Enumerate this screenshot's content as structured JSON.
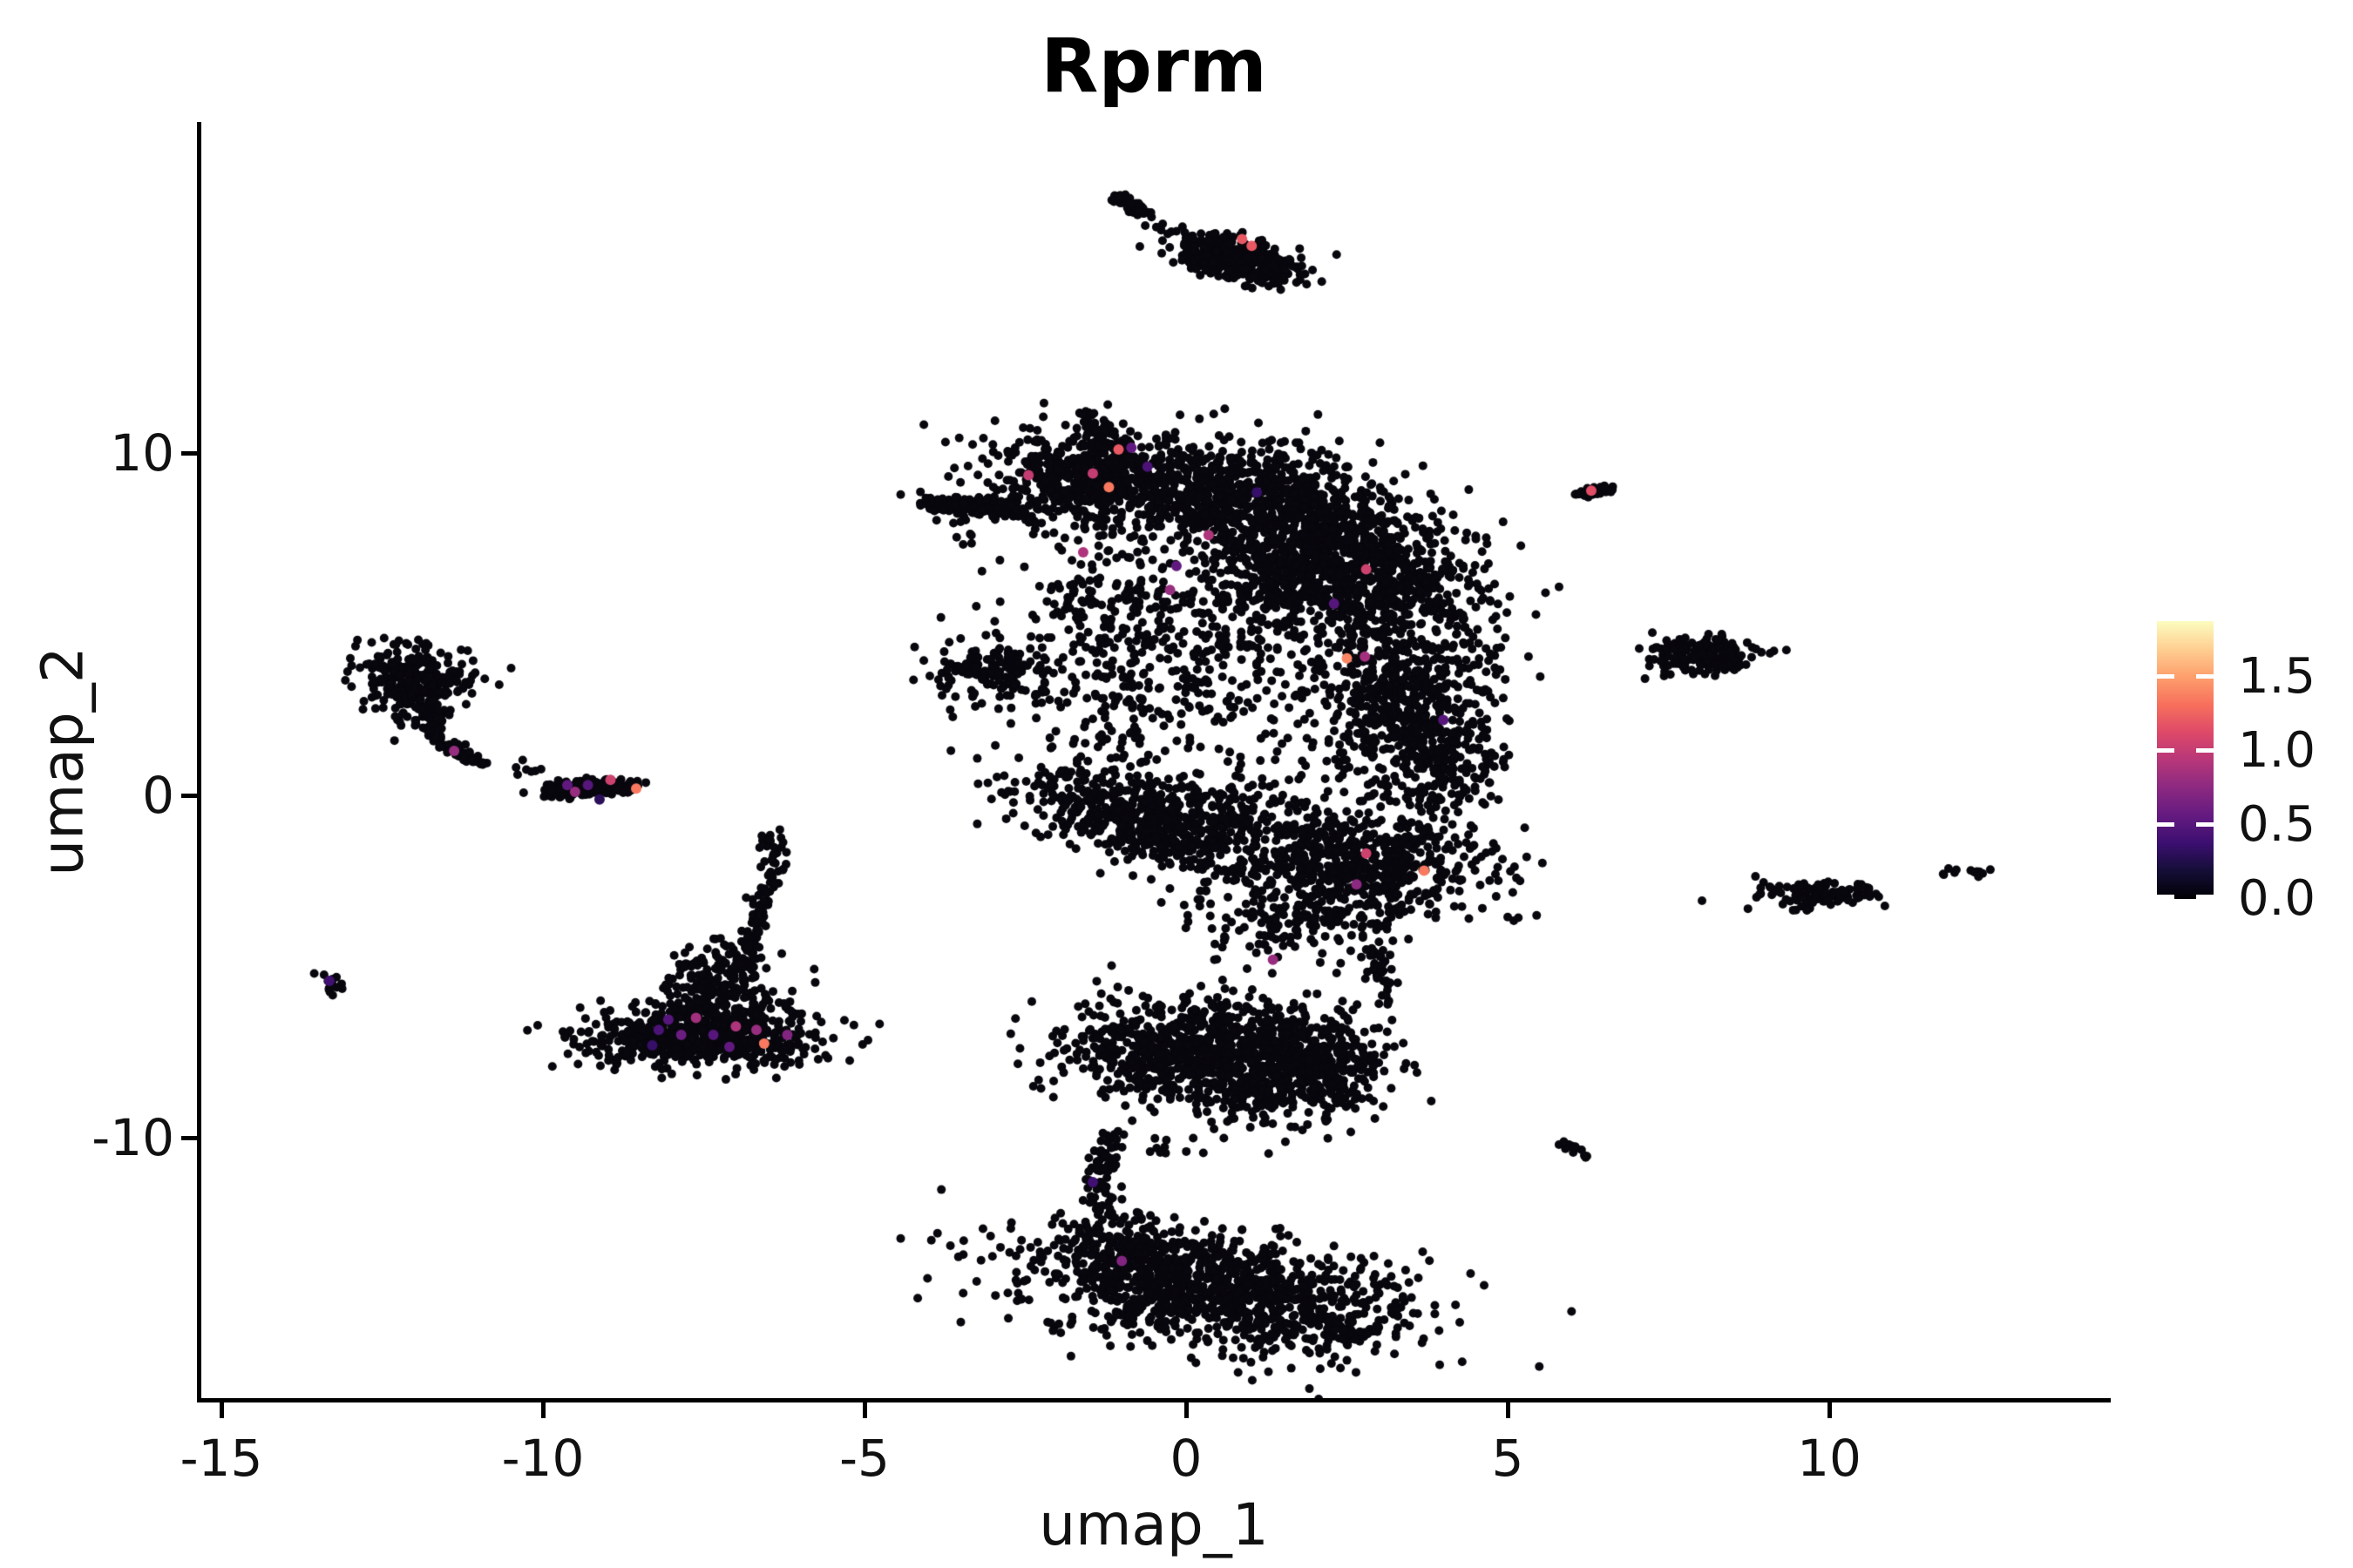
{
  "figure": {
    "title": "Rprm"
  },
  "axes": {
    "x": {
      "label": "umap_1",
      "tick_labels": [
        "-15",
        "-10",
        "-5",
        "0",
        "5",
        "10"
      ],
      "tick_values": [
        -15,
        -10,
        -5,
        0,
        5,
        10
      ]
    },
    "y": {
      "label": "umap_2",
      "tick_labels": [
        "10",
        "0",
        "-10"
      ],
      "tick_values": [
        10,
        0,
        -10
      ]
    }
  },
  "legend": {
    "tick_labels": [
      "1.5",
      "1.0",
      "0.5",
      "0.0"
    ],
    "tick_values": [
      1.5,
      1.0,
      0.5,
      0.0
    ],
    "vmin": 0.0,
    "vmax": 1.875,
    "colormap": "magma",
    "stops": [
      [
        0.0,
        "#000004"
      ],
      [
        0.1,
        "#140e36"
      ],
      [
        0.2,
        "#3b0f70"
      ],
      [
        0.3,
        "#641a80"
      ],
      [
        0.4,
        "#8c2981"
      ],
      [
        0.5,
        "#b73779"
      ],
      [
        0.6,
        "#de4968"
      ],
      [
        0.7,
        "#f7705c"
      ],
      [
        0.8,
        "#fe9f6d"
      ],
      [
        0.9,
        "#fecf92"
      ],
      [
        1.0,
        "#fcfdbf"
      ]
    ]
  },
  "chart_data": {
    "type": "scatter",
    "title": "Rprm",
    "xlabel": "umap_1",
    "ylabel": "umap_2",
    "xlim": [
      -15.35,
      14.35
    ],
    "ylim": [
      -17.7,
      19.7
    ],
    "grid": false,
    "legend_position": "right",
    "point_color_default": "#08070d",
    "color_scale": {
      "vmin": 0.0,
      "vmax": 1.875,
      "colormap": "magma"
    },
    "clusters": [
      {
        "name": "top-streak",
        "type": "line",
        "x1": -1.08,
        "y1": 17.5,
        "x2": -0.6,
        "y2": 16.95,
        "jitter": 0.07,
        "n": 55
      },
      {
        "name": "top-trail",
        "type": "gauss",
        "cx": -0.15,
        "cy": 16.55,
        "sx": 0.3,
        "sy": 0.18,
        "n": 9
      },
      {
        "name": "top-main",
        "type": "line",
        "x1": 0.05,
        "y1": 16.05,
        "x2": 1.5,
        "y2": 15.15,
        "jitter": 0.3,
        "n": 300
      },
      {
        "name": "top-main-core",
        "type": "gauss",
        "cx": 0.6,
        "cy": 15.8,
        "sx": 0.35,
        "sy": 0.3,
        "n": 90
      },
      {
        "name": "hook-blob",
        "type": "gauss",
        "cx": -12.05,
        "cy": 3.5,
        "sx": 0.45,
        "sy": 0.45,
        "n": 240
      },
      {
        "name": "hook-blob2",
        "type": "gauss",
        "cx": -11.9,
        "cy": 2.7,
        "sx": 0.3,
        "sy": 0.4,
        "n": 80
      },
      {
        "name": "hook-tail",
        "type": "line",
        "x1": -11.75,
        "y1": 2.2,
        "x2": -10.9,
        "y2": 0.95,
        "mx": -11.55,
        "my": 1.2,
        "jitter": 0.09,
        "n": 75
      },
      {
        "name": "hook-trail-dots",
        "type": "gauss",
        "cx": -10.3,
        "cy": 0.75,
        "sx": 0.25,
        "sy": 0.12,
        "n": 7
      },
      {
        "name": "left-streak",
        "type": "line",
        "x1": -9.95,
        "y1": 0.1,
        "x2": -8.65,
        "y2": 0.25,
        "jitter": 0.14,
        "n": 220
      },
      {
        "name": "tiny-left",
        "type": "gauss",
        "cx": -13.28,
        "cy": -5.5,
        "sx": 0.18,
        "sy": 0.14,
        "n": 16
      },
      {
        "name": "tri-base",
        "type": "gauss",
        "cx": -7.5,
        "cy": -7.1,
        "sx": 0.92,
        "sy": 0.42,
        "n": 550
      },
      {
        "name": "tri-mid",
        "type": "gauss",
        "cx": -7.35,
        "cy": -6.1,
        "sx": 0.55,
        "sy": 0.5,
        "n": 180
      },
      {
        "name": "tri-apex",
        "type": "gauss",
        "cx": -7.15,
        "cy": -5.0,
        "sx": 0.32,
        "sy": 0.42,
        "n": 90
      },
      {
        "name": "tri-stem",
        "type": "line",
        "x1": -6.9,
        "y1": -4.55,
        "x2": -6.35,
        "y2": -1.6,
        "mx": -6.5,
        "my": -3.2,
        "jitter": 0.1,
        "n": 85
      },
      {
        "name": "tri-stem-top",
        "type": "gauss",
        "cx": -6.45,
        "cy": -1.35,
        "sx": 0.12,
        "sy": 0.2,
        "n": 12
      },
      {
        "name": "arm-left",
        "type": "line",
        "x1": -4.1,
        "y1": 8.55,
        "x2": -2.55,
        "y2": 8.3,
        "jitter": 0.16,
        "n": 180
      },
      {
        "name": "arm-left-trail",
        "type": "gauss",
        "cx": -3.55,
        "cy": 7.75,
        "sx": 0.3,
        "sy": 0.2,
        "n": 7
      },
      {
        "name": "top-nub",
        "type": "line",
        "x1": -1.62,
        "y1": 11.25,
        "x2": -1.3,
        "y2": 10.45,
        "jitter": 0.07,
        "n": 24
      },
      {
        "name": "band-left",
        "type": "gauss",
        "cx": -1.5,
        "cy": 9.3,
        "sx": 0.85,
        "sy": 0.7,
        "n": 600
      },
      {
        "name": "band-right",
        "type": "gauss",
        "cx": 0.7,
        "cy": 8.8,
        "sx": 1.05,
        "sy": 0.8,
        "n": 640
      },
      {
        "name": "block-ur1",
        "type": "gauss",
        "cx": 2.2,
        "cy": 7.7,
        "sx": 0.9,
        "sy": 0.65,
        "n": 450
      },
      {
        "name": "block-ur2",
        "type": "gauss",
        "cx": 3.0,
        "cy": 6.2,
        "sx": 0.8,
        "sy": 0.8,
        "n": 450
      },
      {
        "name": "block-ur3",
        "type": "gauss",
        "cx": 1.6,
        "cy": 6.3,
        "sx": 0.6,
        "sy": 0.6,
        "n": 220
      },
      {
        "name": "mid-left-sparse",
        "type": "gauss",
        "cx": -0.9,
        "cy": 5.5,
        "sx": 0.9,
        "sy": 1.0,
        "n": 180
      },
      {
        "name": "mid-center-sparse",
        "type": "gauss",
        "cx": 0.4,
        "cy": 4.2,
        "sx": 1.1,
        "sy": 1.3,
        "n": 270
      },
      {
        "name": "right-bulge",
        "type": "gauss",
        "cx": 3.3,
        "cy": 2.9,
        "sx": 0.75,
        "sy": 1.25,
        "n": 600
      },
      {
        "name": "right-edge",
        "type": "gauss",
        "cx": 4.0,
        "cy": 1.0,
        "sx": 0.45,
        "sy": 0.9,
        "n": 190
      },
      {
        "name": "detached-blob",
        "type": "gauss",
        "cx": -3.0,
        "cy": 3.6,
        "sx": 0.5,
        "sy": 0.42,
        "n": 140
      },
      {
        "name": "detached-tail",
        "type": "line",
        "x1": -2.6,
        "y1": 3.2,
        "x2": -2.15,
        "y2": 2.75,
        "jitter": 0.1,
        "n": 9
      },
      {
        "name": "mid-gap-sparse",
        "type": "gauss",
        "cx": -1.1,
        "cy": 2.3,
        "sx": 0.7,
        "sy": 0.9,
        "n": 95
      },
      {
        "name": "wedge",
        "type": "gauss",
        "cx": -0.7,
        "cy": -0.7,
        "sx": 1.1,
        "sy": 0.55,
        "rot": -32,
        "n": 550
      },
      {
        "name": "center-bottom",
        "type": "gauss",
        "cx": 0.7,
        "cy": -0.5,
        "sx": 0.9,
        "sy": 0.9,
        "n": 170
      },
      {
        "name": "lower-right",
        "type": "gauss",
        "cx": 2.7,
        "cy": -2.0,
        "sx": 0.95,
        "sy": 0.8,
        "n": 600
      },
      {
        "name": "bottom-taper",
        "type": "gauss",
        "cx": 1.6,
        "cy": -3.7,
        "sx": 0.75,
        "sy": 0.5,
        "n": 150
      },
      {
        "name": "bottom-tail",
        "type": "line",
        "x1": 2.9,
        "y1": -4.4,
        "x2": 3.15,
        "y2": -6.1,
        "jitter": 0.1,
        "n": 42
      },
      {
        "name": "lobe-up-left",
        "type": "gauss",
        "cx": -0.35,
        "cy": -7.4,
        "sx": 0.8,
        "sy": 0.75,
        "n": 500
      },
      {
        "name": "lobe-up-right",
        "type": "gauss",
        "cx": 1.25,
        "cy": -7.8,
        "sx": 0.85,
        "sy": 0.85,
        "n": 650
      },
      {
        "name": "lobe-up-edge",
        "type": "gauss",
        "cx": 2.25,
        "cy": -8.1,
        "sx": 0.4,
        "sy": 0.55,
        "n": 150
      },
      {
        "name": "lobe-up-nub",
        "type": "line",
        "x1": 0.45,
        "y1": -6.0,
        "x2": 0.6,
        "y2": -6.6,
        "jitter": 0.08,
        "n": 12
      },
      {
        "name": "bridge",
        "type": "line",
        "x1": -1.05,
        "y1": -9.85,
        "x2": -1.25,
        "y2": -12.4,
        "mx": -1.55,
        "my": -11.1,
        "jitter": 0.12,
        "n": 80
      },
      {
        "name": "bridge-side",
        "type": "gauss",
        "cx": -0.55,
        "cy": -10.3,
        "sx": 0.3,
        "sy": 0.2,
        "n": 7
      },
      {
        "name": "lobe-low",
        "type": "gauss",
        "cx": 0.55,
        "cy": -14.5,
        "sx": 1.55,
        "sy": 0.8,
        "rot": -16,
        "n": 1100
      },
      {
        "name": "lobe-low-left",
        "type": "gauss",
        "cx": -0.9,
        "cy": -13.3,
        "sx": 0.5,
        "sy": 0.55,
        "n": 180
      },
      {
        "name": "lobe-low-tip",
        "type": "line",
        "x1": 2.1,
        "y1": -15.3,
        "x2": 2.75,
        "y2": -15.95,
        "jitter": 0.12,
        "n": 48
      },
      {
        "name": "r-top",
        "type": "line",
        "x1": 6.1,
        "y1": 8.8,
        "x2": 6.6,
        "y2": 8.95,
        "jitter": 0.08,
        "n": 40
      },
      {
        "name": "r-mid",
        "type": "gauss",
        "cx": 8.0,
        "cy": 4.1,
        "sx": 0.42,
        "sy": 0.26,
        "n": 180
      },
      {
        "name": "r-mid-outliers",
        "type": "gauss",
        "cx": 7.3,
        "cy": 4.2,
        "sx": 0.15,
        "sy": 0.08,
        "n": 4
      },
      {
        "name": "r-bottom",
        "type": "gauss",
        "cx": 9.85,
        "cy": -2.85,
        "sx": 0.48,
        "sy": 0.2,
        "n": 120
      },
      {
        "name": "r-bottom-stray",
        "type": "gauss",
        "cx": 9.45,
        "cy": -3.25,
        "sx": 0.15,
        "sy": 0.1,
        "n": 5
      },
      {
        "name": "r-dot",
        "type": "gauss",
        "cx": 11.75,
        "cy": -2.3,
        "sx": 0.03,
        "sy": 0.03,
        "n": 2
      },
      {
        "name": "r-blob",
        "type": "gauss",
        "cx": 12.25,
        "cy": -2.2,
        "sx": 0.16,
        "sy": 0.07,
        "n": 10
      },
      {
        "name": "r-streak",
        "type": "line",
        "x1": 5.9,
        "y1": -10.15,
        "x2": 6.35,
        "y2": -10.65,
        "jitter": 0.06,
        "n": 14
      }
    ],
    "expressing_cells": [
      {
        "x": 0.87,
        "y": 16.25,
        "v": 1.2
      },
      {
        "x": 1.02,
        "y": 16.05,
        "v": 1.2
      },
      {
        "x": -9.62,
        "y": 0.3,
        "v": 0.55
      },
      {
        "x": -9.3,
        "y": 0.3,
        "v": 0.5
      },
      {
        "x": -8.95,
        "y": 0.45,
        "v": 1.05
      },
      {
        "x": -8.55,
        "y": 0.2,
        "v": 1.35
      },
      {
        "x": -9.12,
        "y": -0.12,
        "v": 0.3
      },
      {
        "x": -9.5,
        "y": 0.1,
        "v": 0.8
      },
      {
        "x": -11.38,
        "y": 1.3,
        "v": 0.8
      },
      {
        "x": -13.32,
        "y": -5.42,
        "v": 0.4
      },
      {
        "x": -8.05,
        "y": -6.55,
        "v": 0.5
      },
      {
        "x": -8.2,
        "y": -6.85,
        "v": 0.45
      },
      {
        "x": -7.85,
        "y": -7.0,
        "v": 0.6
      },
      {
        "x": -7.35,
        "y": -7.0,
        "v": 0.5
      },
      {
        "x": -8.3,
        "y": -7.3,
        "v": 0.35
      },
      {
        "x": -7.0,
        "y": -6.75,
        "v": 0.9
      },
      {
        "x": -7.62,
        "y": -6.5,
        "v": 0.85
      },
      {
        "x": -6.68,
        "y": -6.85,
        "v": 0.8
      },
      {
        "x": -6.56,
        "y": -7.25,
        "v": 1.35
      },
      {
        "x": -7.1,
        "y": -7.35,
        "v": 0.55
      },
      {
        "x": -6.2,
        "y": -7.0,
        "v": 0.7
      },
      {
        "x": -2.45,
        "y": 9.35,
        "v": 1.0
      },
      {
        "x": -1.05,
        "y": 10.1,
        "v": 1.2
      },
      {
        "x": -0.85,
        "y": 10.15,
        "v": 0.55
      },
      {
        "x": -1.2,
        "y": 9.0,
        "v": 1.35
      },
      {
        "x": -1.45,
        "y": 9.4,
        "v": 1.0
      },
      {
        "x": -0.6,
        "y": 9.6,
        "v": 0.45
      },
      {
        "x": 2.8,
        "y": 6.6,
        "v": 1.05
      },
      {
        "x": 2.3,
        "y": 5.6,
        "v": 0.5
      },
      {
        "x": 2.5,
        "y": 4.0,
        "v": 1.4
      },
      {
        "x": 2.78,
        "y": 4.05,
        "v": 0.85
      },
      {
        "x": -0.15,
        "y": 6.7,
        "v": 0.55
      },
      {
        "x": -0.25,
        "y": 6.0,
        "v": 0.8
      },
      {
        "x": 2.8,
        "y": -1.7,
        "v": 1.05
      },
      {
        "x": 3.7,
        "y": -2.2,
        "v": 1.35
      },
      {
        "x": 2.65,
        "y": -2.6,
        "v": 0.75
      },
      {
        "x": 1.35,
        "y": -4.8,
        "v": 0.8
      },
      {
        "x": 4.0,
        "y": 2.2,
        "v": 0.5
      },
      {
        "x": 1.1,
        "y": 8.85,
        "v": 0.35
      },
      {
        "x": 0.35,
        "y": 7.6,
        "v": 0.9
      },
      {
        "x": -1.6,
        "y": 7.1,
        "v": 0.9
      },
      {
        "x": -1.45,
        "y": -11.3,
        "v": 0.4
      },
      {
        "x": -1.0,
        "y": -13.6,
        "v": 0.7
      },
      {
        "x": 6.3,
        "y": 8.9,
        "v": 1.15
      }
    ]
  }
}
